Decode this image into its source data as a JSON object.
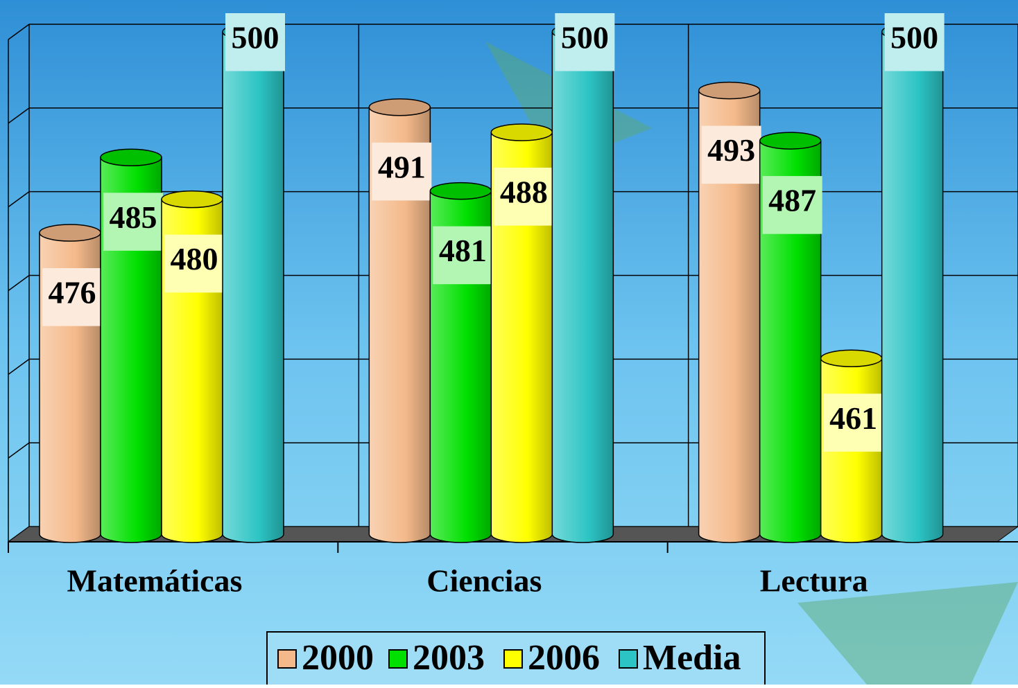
{
  "chart_data": {
    "type": "bar3d",
    "categories": [
      "Matemáticas",
      "Ciencias",
      "Lectura"
    ],
    "series": [
      {
        "name": "2000",
        "color": "#f4b98a",
        "values": [
          476,
          491,
          493
        ]
      },
      {
        "name": "2003",
        "color": "#00e000",
        "values": [
          485,
          481,
          487
        ]
      },
      {
        "name": "2006",
        "color": "#ffff00",
        "values": [
          480,
          488,
          461
        ]
      },
      {
        "name": "Media",
        "color": "#2cc4c4",
        "values": [
          500,
          500,
          500
        ]
      }
    ],
    "ylim": [
      440,
      500
    ],
    "yticks": [
      440,
      450,
      460,
      470,
      480,
      490,
      500
    ],
    "grid": true,
    "legend": "bottom"
  }
}
